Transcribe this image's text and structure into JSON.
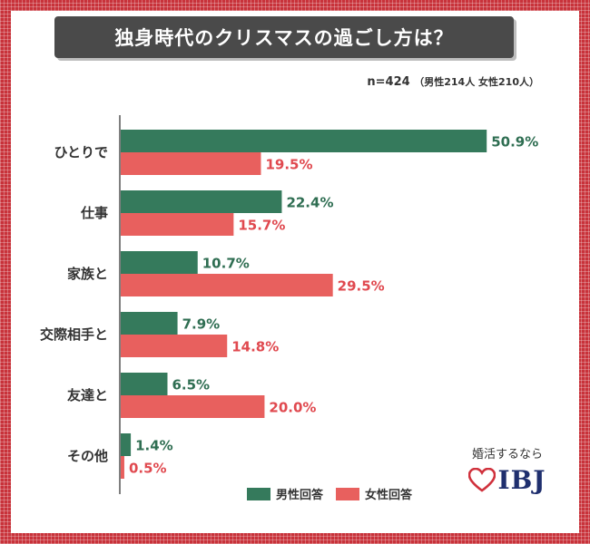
{
  "title": "独身時代のクリスマスの過ごし方は？",
  "sample": {
    "main": "n=424",
    "breakdown": "（男性214人  女性210人）"
  },
  "colors": {
    "male": "#357a5c",
    "female": "#e8605e",
    "male_text": "#2f6e52",
    "female_text": "#e0494f",
    "brand": "#1f2f6e",
    "heart": "#d0313c"
  },
  "legend": {
    "male": "男性回答",
    "female": "女性回答"
  },
  "brand": {
    "tagline": "婚活するなら",
    "name": "IBJ"
  },
  "chart_data": {
    "type": "bar",
    "orientation": "horizontal",
    "title": "独身時代のクリスマスの過ごし方は？",
    "unit": "%",
    "categories": [
      "ひとりで",
      "仕事",
      "家族と",
      "交際相手と",
      "友達と",
      "その他"
    ],
    "series": [
      {
        "name": "男性回答",
        "values": [
          50.9,
          22.4,
          10.7,
          7.9,
          6.5,
          1.4
        ]
      },
      {
        "name": "女性回答",
        "values": [
          19.5,
          15.7,
          29.5,
          14.8,
          20.0,
          0.5
        ]
      }
    ],
    "xlim": [
      0,
      51
    ]
  }
}
